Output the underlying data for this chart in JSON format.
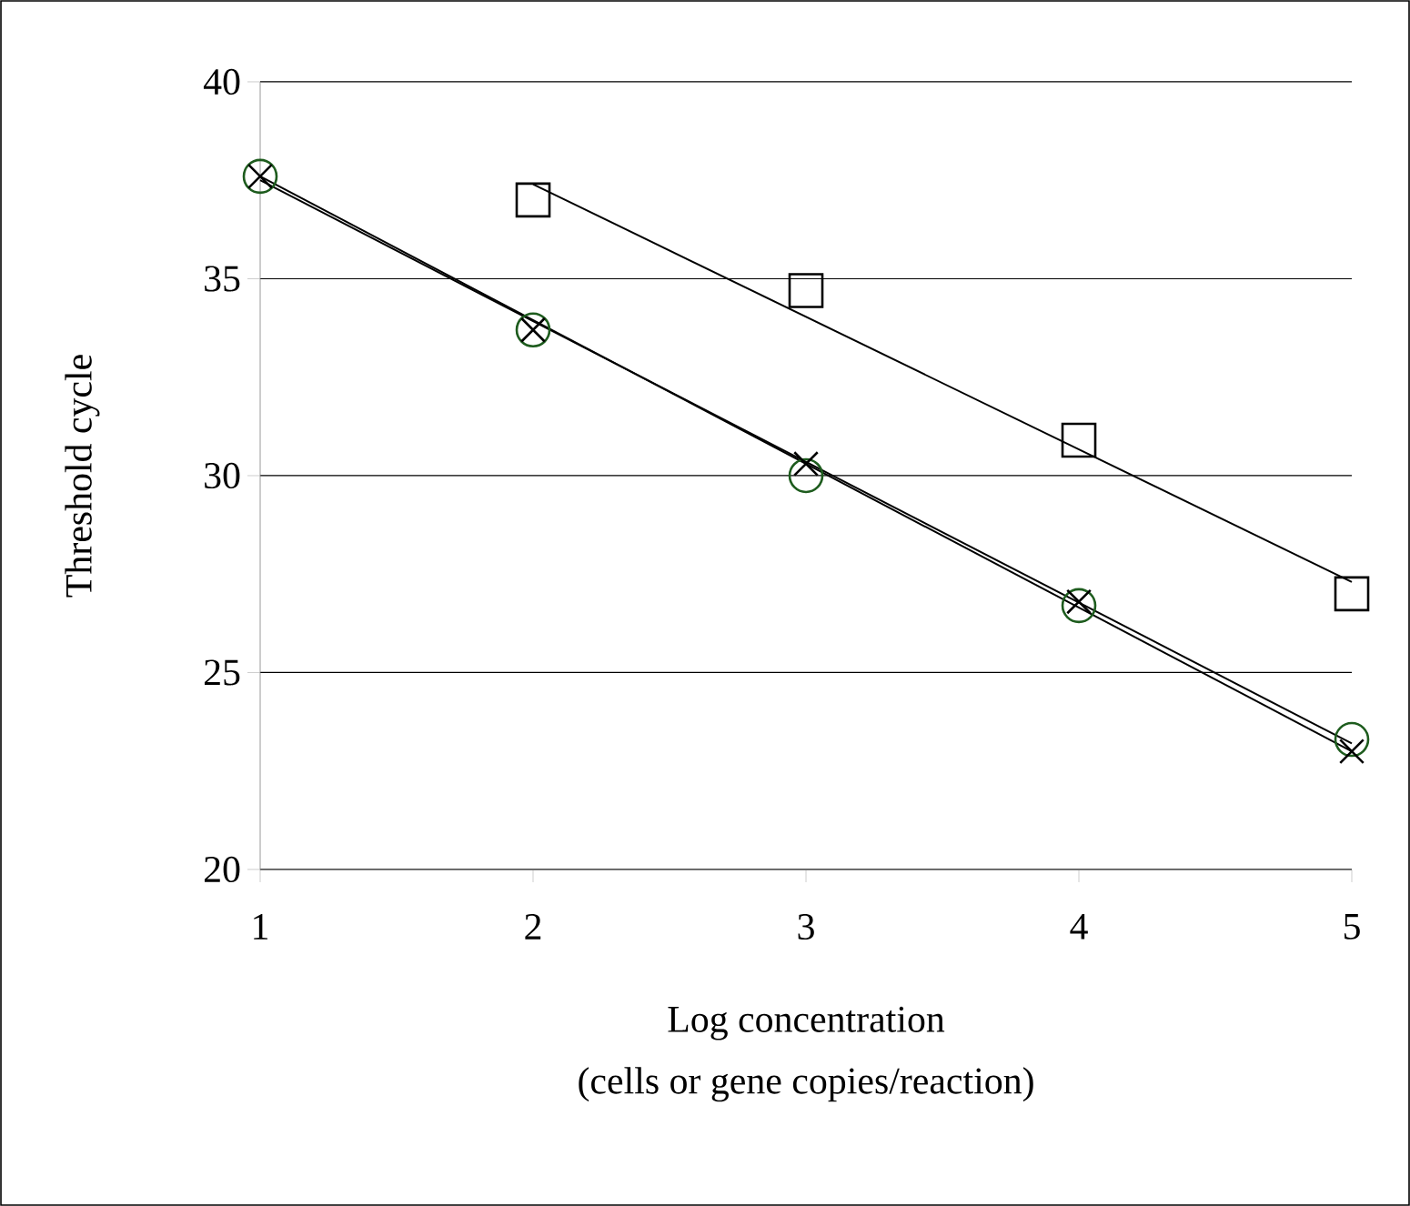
{
  "chart_data": {
    "type": "scatter",
    "xlabel": "Log concentration\n(cells or gene copies/reaction)",
    "ylabel": "Threshold cycle",
    "xlim": [
      1,
      5
    ],
    "xticks": [
      1,
      2,
      3,
      4,
      5
    ],
    "ylim": [
      20,
      40
    ],
    "yticks": [
      20,
      25,
      30,
      35,
      40
    ],
    "grid": "y",
    "series": [
      {
        "marker": "square",
        "color": "#000000",
        "x": [
          2,
          3,
          4,
          5
        ],
        "values": [
          37.0,
          34.7,
          30.9,
          27.0
        ]
      },
      {
        "marker": "circle",
        "color": "#1e5c1e",
        "x": [
          1,
          2,
          3,
          4,
          5
        ],
        "values": [
          37.6,
          33.7,
          30.0,
          26.7,
          23.3
        ]
      },
      {
        "marker": "cross",
        "color": "#000000",
        "x": [
          1,
          2,
          3,
          4,
          5
        ],
        "values": [
          37.6,
          33.7,
          30.3,
          26.8,
          23.0
        ]
      },
      {
        "type": "line",
        "marker": "none",
        "color": "#000000",
        "x": [
          2,
          5
        ],
        "values": [
          37.4,
          27.3
        ]
      },
      {
        "type": "line",
        "marker": "none",
        "color": "#000000",
        "x": [
          1,
          5
        ],
        "values": [
          37.5,
          23.2
        ]
      },
      {
        "type": "line",
        "marker": "none",
        "color": "#000000",
        "x": [
          1,
          5
        ],
        "values": [
          37.6,
          23.0
        ]
      }
    ]
  }
}
